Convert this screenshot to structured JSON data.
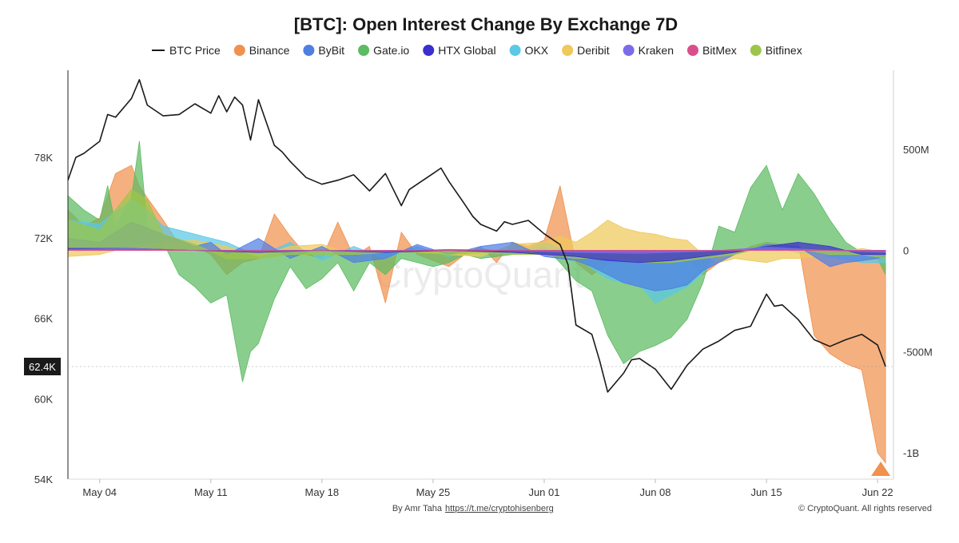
{
  "chart_data": {
    "type": "area",
    "title": "[BTC]: Open Interest Change By Exchange 7D",
    "watermark": "CryptoQuant",
    "footer_author_prefix": "By Amr Taha",
    "footer_link": "https://t.me/cryptohisenberg",
    "footer_copyright": "© CryptoQuant. All rights reserved",
    "current_price_label": "62.4K",
    "current_price": 62400,
    "x_ticks": [
      "May 04",
      "May 11",
      "May 18",
      "May 25",
      "Jun 01",
      "Jun 08",
      "Jun 15",
      "Jun 22"
    ],
    "y_left": {
      "ticks": [
        "54K",
        "60K",
        "66K",
        "72K",
        "78K"
      ],
      "tick_values": [
        54000,
        60000,
        66000,
        72000,
        78000
      ],
      "range": [
        54000,
        84500
      ]
    },
    "y_right": {
      "ticks": [
        "500M",
        "0",
        "-500M",
        "-1B"
      ],
      "tick_values": [
        500,
        0,
        -500,
        -1000
      ],
      "range": [
        -1130,
        890
      ],
      "unit": "M USD"
    },
    "x_range": [
      0,
      52
    ],
    "x_tick_positions": [
      2,
      9,
      16,
      23,
      30,
      37,
      44,
      51
    ],
    "legend": [
      {
        "name": "BTC Price",
        "color": "#1a1a1a",
        "kind": "line"
      },
      {
        "name": "Binance",
        "color": "#f0914e",
        "kind": "dot"
      },
      {
        "name": "ByBit",
        "color": "#4f7fe3",
        "kind": "dot"
      },
      {
        "name": "Gate.io",
        "color": "#5dbb63",
        "kind": "dot"
      },
      {
        "name": "HTX Global",
        "color": "#3b2fcf",
        "kind": "dot"
      },
      {
        "name": "OKX",
        "color": "#5bc8e6",
        "kind": "dot"
      },
      {
        "name": "Deribit",
        "color": "#efc95a",
        "kind": "dot"
      },
      {
        "name": "Kraken",
        "color": "#7b6bea",
        "kind": "dot"
      },
      {
        "name": "BitMex",
        "color": "#d94f8c",
        "kind": "dot"
      },
      {
        "name": "Bitfinex",
        "color": "#9cc64a",
        "kind": "dot"
      }
    ],
    "price_series": {
      "name": "BTC Price",
      "x": [
        0,
        0.5,
        1,
        2,
        2.5,
        3,
        4,
        4.5,
        5,
        6,
        7,
        8,
        9,
        9.5,
        10,
        10.5,
        11,
        11.5,
        12,
        13,
        13.5,
        14,
        15,
        16,
        17,
        18,
        19,
        20,
        21,
        21.5,
        22,
        23,
        23.5,
        24,
        25,
        25.5,
        26,
        27,
        27.5,
        28,
        29,
        30,
        31,
        31.5,
        32,
        33,
        33.5,
        34,
        35,
        35.5,
        36,
        37,
        38,
        39,
        40,
        41,
        42,
        43,
        44,
        44.5,
        45,
        46,
        47,
        48,
        49,
        50,
        51,
        51.5
      ],
      "values": [
        76300,
        78000,
        78300,
        79200,
        81200,
        81000,
        82400,
        83800,
        81900,
        81100,
        81200,
        82000,
        81300,
        82600,
        81400,
        82500,
        81900,
        79300,
        82300,
        78900,
        78400,
        77700,
        76500,
        76000,
        76300,
        76700,
        75500,
        76800,
        74400,
        75600,
        76000,
        76800,
        77200,
        76200,
        74500,
        73600,
        73000,
        72500,
        73200,
        73000,
        73300,
        72300,
        71500,
        70000,
        65500,
        64800,
        62800,
        60500,
        61900,
        62900,
        63000,
        62200,
        60700,
        62500,
        63700,
        64300,
        65100,
        65400,
        67800,
        66900,
        67000,
        65900,
        64400,
        63900,
        64400,
        64800,
        64000,
        62400
      ]
    },
    "series": [
      {
        "name": "Gate.io",
        "x": [
          0,
          1,
          2,
          2.5,
          3,
          4,
          4.5,
          5,
          6,
          7,
          8,
          9,
          10,
          11,
          11.5,
          12,
          13,
          14,
          15,
          16,
          17,
          18,
          19,
          20,
          21,
          22,
          23,
          24,
          25,
          26,
          27,
          28,
          29,
          30,
          31,
          32,
          33,
          34,
          35,
          36,
          37,
          38,
          39,
          40,
          41,
          42,
          43,
          44,
          45,
          46,
          47,
          48,
          49,
          50,
          51,
          51.5
        ],
        "values": [
          270,
          200,
          150,
          320,
          120,
          260,
          540,
          120,
          40,
          -120,
          -180,
          -260,
          -220,
          -650,
          -500,
          -460,
          -240,
          -80,
          -190,
          -140,
          -60,
          -200,
          -60,
          -120,
          -40,
          -60,
          -80,
          -60,
          -20,
          -40,
          -30,
          -20,
          -10,
          20,
          -60,
          -150,
          -200,
          -420,
          -560,
          -500,
          -470,
          -430,
          -340,
          -160,
          120,
          90,
          310,
          420,
          200,
          380,
          280,
          150,
          40,
          -10,
          -40,
          -120
        ]
      },
      {
        "name": "Binance",
        "x": [
          0,
          1,
          2,
          3,
          4,
          4.5,
          5,
          6,
          7,
          8,
          9,
          10,
          11,
          12,
          13,
          14,
          15,
          16,
          17,
          18,
          19,
          20,
          21,
          22,
          23,
          24,
          25,
          26,
          27,
          28,
          29,
          30,
          31,
          32,
          33,
          34,
          35,
          36,
          37,
          38,
          39,
          40,
          41,
          42,
          43,
          44,
          45,
          46,
          47,
          48,
          49,
          50,
          51,
          51.5
        ],
        "values": [
          200,
          120,
          160,
          380,
          420,
          320,
          260,
          150,
          30,
          20,
          -20,
          -120,
          -60,
          -40,
          180,
          70,
          -20,
          -40,
          140,
          -30,
          20,
          -260,
          90,
          -20,
          -50,
          -80,
          -20,
          20,
          -60,
          40,
          20,
          50,
          320,
          -60,
          -120,
          -70,
          -20,
          -40,
          -10,
          -10,
          -40,
          -120,
          -60,
          -20,
          20,
          40,
          30,
          40,
          -420,
          -510,
          -560,
          -590,
          -1000,
          -1050
        ]
      },
      {
        "name": "OKX",
        "x": [
          0,
          2,
          4,
          5,
          6,
          8,
          10,
          12,
          14,
          16,
          18,
          20,
          22,
          24,
          26,
          28,
          30,
          31,
          32,
          33,
          34,
          35,
          36,
          37,
          38,
          39,
          40,
          41,
          42,
          44,
          46,
          48,
          50,
          51.5
        ],
        "values": [
          150,
          130,
          250,
          200,
          120,
          80,
          40,
          -30,
          40,
          -50,
          20,
          -40,
          20,
          -30,
          10,
          -20,
          40,
          10,
          -30,
          -90,
          -140,
          -160,
          -170,
          -260,
          -220,
          -180,
          -110,
          -30,
          -20,
          20,
          -10,
          -30,
          -60,
          -60
        ]
      },
      {
        "name": "Deribit",
        "x": [
          0,
          2,
          4,
          6,
          8,
          10,
          12,
          14,
          16,
          18,
          20,
          22,
          24,
          26,
          28,
          30,
          31,
          32,
          33,
          34,
          35,
          36,
          37,
          38,
          39,
          40,
          41,
          42,
          43,
          44,
          45,
          46,
          47,
          48,
          50,
          51.5
        ],
        "values": [
          -30,
          -20,
          20,
          40,
          50,
          20,
          -30,
          20,
          30,
          -20,
          -10,
          -10,
          -20,
          -30,
          30,
          40,
          70,
          40,
          90,
          150,
          110,
          90,
          80,
          60,
          50,
          -20,
          -60,
          -40,
          -50,
          -60,
          -40,
          -40,
          -30,
          -20,
          10,
          -10
        ]
      },
      {
        "name": "ByBit",
        "x": [
          0,
          2,
          4,
          6,
          8,
          9,
          10,
          12,
          14,
          16,
          18,
          20,
          22,
          24,
          26,
          28,
          30,
          32,
          33,
          34,
          35,
          36,
          37,
          38,
          39,
          40,
          41,
          42,
          44,
          46,
          48,
          49,
          50,
          51,
          51.5
        ],
        "values": [
          60,
          40,
          140,
          80,
          20,
          40,
          -20,
          60,
          -40,
          20,
          -60,
          -40,
          30,
          -20,
          20,
          40,
          -30,
          -50,
          -80,
          -120,
          -160,
          -180,
          -200,
          -190,
          -170,
          -100,
          -60,
          -20,
          30,
          20,
          -80,
          -60,
          -50,
          -40,
          -30
        ]
      },
      {
        "name": "HTX Global",
        "x": [
          0,
          4,
          8,
          12,
          16,
          20,
          24,
          28,
          30,
          32,
          34,
          36,
          38,
          40,
          42,
          44,
          46,
          48,
          50,
          51.5
        ],
        "values": [
          10,
          10,
          0,
          -10,
          0,
          -10,
          0,
          -10,
          -20,
          -30,
          -50,
          -60,
          -50,
          -30,
          -10,
          20,
          40,
          20,
          -20,
          -20
        ]
      },
      {
        "name": "Kraken",
        "x": [
          0,
          4,
          8,
          12,
          16,
          20,
          24,
          28,
          32,
          36,
          40,
          44,
          48,
          51.5
        ],
        "values": [
          5,
          10,
          0,
          -5,
          0,
          -5,
          5,
          0,
          -10,
          -15,
          -5,
          15,
          0,
          -10
        ]
      },
      {
        "name": "BitMex",
        "x": [
          0,
          4,
          8,
          12,
          16,
          20,
          24,
          28,
          32,
          36,
          40,
          44,
          48,
          51.5
        ],
        "values": [
          2,
          4,
          0,
          -2,
          0,
          -2,
          2,
          0,
          -4,
          -6,
          -2,
          4,
          0,
          -2
        ]
      },
      {
        "name": "Bitfinex",
        "x": [
          0,
          2,
          4,
          5,
          6,
          8,
          10,
          12,
          14,
          16,
          18,
          20,
          22,
          24,
          26,
          28,
          30,
          32,
          34,
          36,
          38,
          40,
          42,
          44,
          46,
          48,
          50,
          51.5
        ],
        "values": [
          150,
          100,
          300,
          250,
          80,
          30,
          -40,
          -40,
          -20,
          -20,
          -20,
          -10,
          -10,
          -20,
          -10,
          -20,
          -20,
          -40,
          -40,
          -60,
          -60,
          -40,
          -20,
          20,
          10,
          -20,
          -20,
          -40
        ]
      }
    ]
  }
}
